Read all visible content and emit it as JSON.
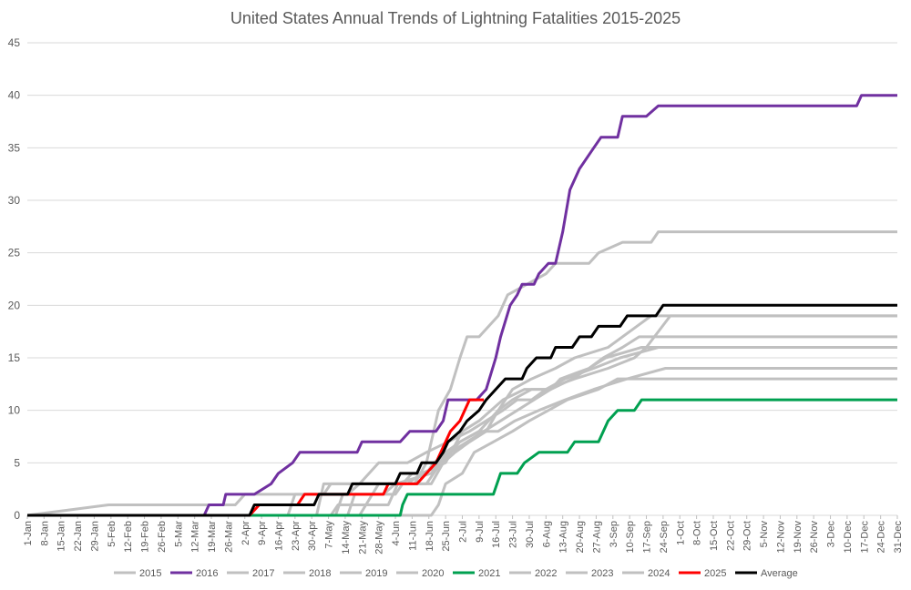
{
  "chart_data": {
    "type": "line",
    "title": "United States Annual Trends of Lightning Fatalities 2015-2025",
    "xlabel": "",
    "ylabel": "",
    "ylim": [
      0,
      45
    ],
    "yticks": [
      0,
      5,
      10,
      15,
      20,
      25,
      30,
      35,
      40,
      45
    ],
    "xlim": [
      1,
      365
    ],
    "x_unit": "day of year",
    "xtick_labels": [
      "1-Jan",
      "8-Jan",
      "15-Jan",
      "22-Jan",
      "29-Jan",
      "5-Feb",
      "12-Feb",
      "19-Feb",
      "26-Feb",
      "5-Mar",
      "12-Mar",
      "19-Mar",
      "26-Mar",
      "2-Apr",
      "9-Apr",
      "16-Apr",
      "23-Apr",
      "30-Apr",
      "7-May",
      "14-May",
      "21-May",
      "28-May",
      "4-Jun",
      "11-Jun",
      "18-Jun",
      "25-Jun",
      "2-Jul",
      "9-Jul",
      "16-Jul",
      "23-Jul",
      "30-Jul",
      "6-Aug",
      "13-Aug",
      "20-Aug",
      "27-Aug",
      "3-Sep",
      "10-Sep",
      "17-Sep",
      "24-Sep",
      "1-Oct",
      "8-Oct",
      "15-Oct",
      "22-Oct",
      "29-Oct",
      "5-Nov",
      "12-Nov",
      "19-Nov",
      "26-Nov",
      "3-Dec",
      "10-Dec",
      "17-Dec",
      "24-Dec",
      "31-Dec"
    ],
    "grid": true,
    "legend": "bottom",
    "series": [
      {
        "name": "2015",
        "color": "#c0c0c0",
        "points": [
          [
            1,
            0
          ],
          [
            35,
            1
          ],
          [
            88,
            1
          ],
          [
            92,
            2
          ],
          [
            125,
            2
          ],
          [
            128,
            3
          ],
          [
            158,
            3
          ],
          [
            162,
            4
          ],
          [
            168,
            4
          ],
          [
            171,
            5
          ],
          [
            178,
            6
          ],
          [
            185,
            7
          ],
          [
            192,
            8
          ],
          [
            199,
            9
          ],
          [
            206,
            10
          ],
          [
            213,
            11
          ],
          [
            220,
            12
          ],
          [
            229,
            13
          ],
          [
            236,
            14
          ],
          [
            243,
            15
          ],
          [
            258,
            16
          ],
          [
            275,
            16
          ],
          [
            365,
            16
          ]
        ]
      },
      {
        "name": "2016",
        "color": "#7030a0",
        "points": [
          [
            1,
            0
          ],
          [
            75,
            0
          ],
          [
            77,
            1
          ],
          [
            83,
            1
          ],
          [
            84,
            2
          ],
          [
            96,
            2
          ],
          [
            103,
            3
          ],
          [
            106,
            4
          ],
          [
            112,
            5
          ],
          [
            115,
            6
          ],
          [
            139,
            6
          ],
          [
            141,
            7
          ],
          [
            157,
            7
          ],
          [
            161,
            8
          ],
          [
            172,
            8
          ],
          [
            175,
            9
          ],
          [
            177,
            11
          ],
          [
            189,
            11
          ],
          [
            193,
            12
          ],
          [
            197,
            15
          ],
          [
            199,
            17
          ],
          [
            203,
            20
          ],
          [
            206,
            21
          ],
          [
            208,
            22
          ],
          [
            213,
            22
          ],
          [
            215,
            23
          ],
          [
            219,
            24
          ],
          [
            222,
            24
          ],
          [
            225,
            27
          ],
          [
            228,
            31
          ],
          [
            232,
            33
          ],
          [
            238,
            35
          ],
          [
            241,
            36
          ],
          [
            248,
            36
          ],
          [
            250,
            38
          ],
          [
            260,
            38
          ],
          [
            265,
            39
          ],
          [
            348,
            39
          ],
          [
            350,
            40
          ],
          [
            365,
            40
          ]
        ]
      },
      {
        "name": "2017",
        "color": "#c0c0c0",
        "points": [
          [
            1,
            0
          ],
          [
            135,
            0
          ],
          [
            138,
            2
          ],
          [
            155,
            2
          ],
          [
            158,
            3
          ],
          [
            170,
            3
          ],
          [
            175,
            5
          ],
          [
            180,
            6
          ],
          [
            186,
            7
          ],
          [
            193,
            8
          ],
          [
            198,
            10
          ],
          [
            204,
            11
          ],
          [
            212,
            12
          ],
          [
            220,
            12
          ],
          [
            224,
            13
          ],
          [
            236,
            14
          ],
          [
            242,
            15
          ],
          [
            250,
            16
          ],
          [
            257,
            17
          ],
          [
            265,
            17
          ],
          [
            365,
            17
          ]
        ]
      },
      {
        "name": "2018",
        "color": "#c0c0c0",
        "points": [
          [
            1,
            0
          ],
          [
            110,
            0
          ],
          [
            113,
            2
          ],
          [
            135,
            2
          ],
          [
            140,
            3
          ],
          [
            160,
            3
          ],
          [
            166,
            4
          ],
          [
            176,
            5
          ],
          [
            183,
            8
          ],
          [
            190,
            9
          ],
          [
            200,
            11
          ],
          [
            209,
            12
          ],
          [
            218,
            12
          ],
          [
            226,
            13
          ],
          [
            238,
            14
          ],
          [
            249,
            15
          ],
          [
            265,
            16
          ],
          [
            280,
            16
          ],
          [
            365,
            16
          ]
        ]
      },
      {
        "name": "2019",
        "color": "#c0c0c0",
        "points": [
          [
            1,
            0
          ],
          [
            122,
            0
          ],
          [
            125,
            3
          ],
          [
            140,
            3
          ],
          [
            148,
            5
          ],
          [
            160,
            5
          ],
          [
            168,
            6
          ],
          [
            177,
            7
          ],
          [
            186,
            8
          ],
          [
            193,
            9
          ],
          [
            200,
            10
          ],
          [
            206,
            11
          ],
          [
            212,
            11
          ],
          [
            218,
            12
          ],
          [
            230,
            13
          ],
          [
            244,
            14
          ],
          [
            255,
            15
          ],
          [
            260,
            16
          ],
          [
            270,
            19
          ],
          [
            280,
            19
          ],
          [
            365,
            19
          ]
        ]
      },
      {
        "name": "2020",
        "color": "#c0c0c0",
        "points": [
          [
            1,
            0
          ],
          [
            128,
            0
          ],
          [
            131,
            1
          ],
          [
            152,
            1
          ],
          [
            156,
            3
          ],
          [
            168,
            3
          ],
          [
            174,
            5
          ],
          [
            182,
            7
          ],
          [
            190,
            8
          ],
          [
            198,
            10
          ],
          [
            204,
            12
          ],
          [
            212,
            13
          ],
          [
            222,
            14
          ],
          [
            230,
            15
          ],
          [
            244,
            16
          ],
          [
            256,
            18
          ],
          [
            262,
            19
          ],
          [
            275,
            19
          ],
          [
            365,
            19
          ]
        ]
      },
      {
        "name": "2021",
        "color": "#00a050",
        "points": [
          [
            1,
            0
          ],
          [
            157,
            0
          ],
          [
            158,
            1
          ],
          [
            160,
            2
          ],
          [
            175,
            2
          ],
          [
            180,
            2
          ],
          [
            196,
            2
          ],
          [
            199,
            4
          ],
          [
            206,
            4
          ],
          [
            209,
            5
          ],
          [
            215,
            6
          ],
          [
            227,
            6
          ],
          [
            230,
            7
          ],
          [
            240,
            7
          ],
          [
            244,
            9
          ],
          [
            248,
            10
          ],
          [
            255,
            10
          ],
          [
            258,
            11
          ],
          [
            365,
            11
          ]
        ]
      },
      {
        "name": "2022",
        "color": "#c0c0c0",
        "points": [
          [
            1,
            0
          ],
          [
            170,
            0
          ],
          [
            173,
            1
          ],
          [
            176,
            3
          ],
          [
            183,
            4
          ],
          [
            188,
            6
          ],
          [
            196,
            7
          ],
          [
            204,
            8
          ],
          [
            211,
            9
          ],
          [
            219,
            10
          ],
          [
            227,
            11
          ],
          [
            240,
            12
          ],
          [
            248,
            13
          ],
          [
            272,
            13
          ],
          [
            365,
            13
          ]
        ]
      },
      {
        "name": "2023",
        "color": "#c0c0c0",
        "points": [
          [
            1,
            0
          ],
          [
            130,
            0
          ],
          [
            133,
            2
          ],
          [
            150,
            2
          ],
          [
            155,
            3
          ],
          [
            170,
            4
          ],
          [
            176,
            6
          ],
          [
            182,
            7
          ],
          [
            190,
            8
          ],
          [
            198,
            8
          ],
          [
            205,
            9
          ],
          [
            215,
            10
          ],
          [
            226,
            11
          ],
          [
            238,
            12
          ],
          [
            252,
            13
          ],
          [
            268,
            14
          ],
          [
            365,
            14
          ]
        ]
      },
      {
        "name": "2024",
        "color": "#c0c0c0",
        "points": [
          [
            1,
            0
          ],
          [
            140,
            0
          ],
          [
            148,
            3
          ],
          [
            163,
            3
          ],
          [
            168,
            5
          ],
          [
            173,
            10
          ],
          [
            178,
            12
          ],
          [
            182,
            15
          ],
          [
            185,
            17
          ],
          [
            190,
            17
          ],
          [
            194,
            18
          ],
          [
            198,
            19
          ],
          [
            202,
            21
          ],
          [
            210,
            22
          ],
          [
            218,
            23
          ],
          [
            222,
            24
          ],
          [
            236,
            24
          ],
          [
            240,
            25
          ],
          [
            250,
            26
          ],
          [
            262,
            26
          ],
          [
            265,
            27
          ],
          [
            365,
            27
          ]
        ]
      },
      {
        "name": "2025",
        "color": "#ff0000",
        "points": [
          [
            1,
            0
          ],
          [
            94,
            0
          ],
          [
            98,
            1
          ],
          [
            114,
            1
          ],
          [
            117,
            2
          ],
          [
            135,
            2
          ],
          [
            137,
            2
          ],
          [
            150,
            2
          ],
          [
            152,
            3
          ],
          [
            164,
            3
          ],
          [
            168,
            4
          ],
          [
            172,
            5
          ],
          [
            176,
            7
          ],
          [
            178,
            8
          ],
          [
            182,
            9
          ],
          [
            186,
            11
          ],
          [
            192,
            11
          ]
        ]
      },
      {
        "name": "Average",
        "color": "#000000",
        "points": [
          [
            1,
            0
          ],
          [
            94,
            0
          ],
          [
            96,
            1
          ],
          [
            121,
            1
          ],
          [
            123,
            2
          ],
          [
            135,
            2
          ],
          [
            137,
            3
          ],
          [
            155,
            3
          ],
          [
            157,
            4
          ],
          [
            164,
            4
          ],
          [
            166,
            5
          ],
          [
            172,
            5
          ],
          [
            175,
            6
          ],
          [
            177,
            7
          ],
          [
            182,
            8
          ],
          [
            185,
            9
          ],
          [
            190,
            10
          ],
          [
            193,
            11
          ],
          [
            197,
            12
          ],
          [
            201,
            13
          ],
          [
            208,
            13
          ],
          [
            210,
            14
          ],
          [
            214,
            15
          ],
          [
            220,
            15
          ],
          [
            222,
            16
          ],
          [
            229,
            16
          ],
          [
            232,
            17
          ],
          [
            237,
            17
          ],
          [
            240,
            18
          ],
          [
            249,
            18
          ],
          [
            252,
            19
          ],
          [
            264,
            19
          ],
          [
            267,
            20
          ],
          [
            365,
            20
          ]
        ]
      }
    ]
  }
}
